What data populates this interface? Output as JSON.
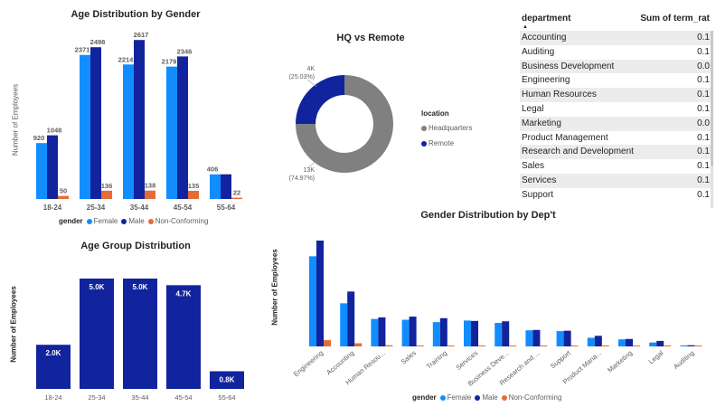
{
  "colors": {
    "female": "#118DFF",
    "male": "#12239E",
    "nonconforming": "#E66C37",
    "hq": "#808080",
    "remote": "#12239E",
    "bar": "#12239E"
  },
  "age_gender": {
    "title": "Age Distribution by Gender",
    "ylabel": "Number of Employees",
    "legend_title": "gender",
    "legend_items": [
      "Female",
      "Male",
      "Non-Conforming"
    ]
  },
  "hq_remote": {
    "title": "HQ vs Remote",
    "legend_title": "location",
    "legend_items": [
      "Headquarters",
      "Remote"
    ],
    "remote_label": "4K",
    "remote_pct": "(25.03%)",
    "hq_label": "13K",
    "hq_pct": "(74.97%)"
  },
  "table": {
    "col1": "department",
    "col2": "Sum of term_rat",
    "rows": [
      {
        "department": "Accounting",
        "value": "0.1"
      },
      {
        "department": "Auditing",
        "value": "0.1"
      },
      {
        "department": "Business Development",
        "value": "0.0"
      },
      {
        "department": "Engineering",
        "value": "0.1"
      },
      {
        "department": "Human Resources",
        "value": "0.1"
      },
      {
        "department": "Legal",
        "value": "0.1"
      },
      {
        "department": "Marketing",
        "value": "0.0"
      },
      {
        "department": "Product Management",
        "value": "0.1"
      },
      {
        "department": "Research and Development",
        "value": "0.1"
      },
      {
        "department": "Sales",
        "value": "0.1"
      },
      {
        "department": "Services",
        "value": "0.1"
      },
      {
        "department": "Support",
        "value": "0.1"
      }
    ]
  },
  "age_group": {
    "title": "Age Group Distribution",
    "ylabel": "Number of Employees"
  },
  "dept_gender": {
    "title": "Gender Distribution by Dep't",
    "ylabel": "Number of Employees",
    "legend_title": "gender",
    "legend_items": [
      "Female",
      "Male",
      "Non-Conforming"
    ]
  },
  "chart_data": [
    {
      "type": "bar",
      "title": "Age Distribution by Gender",
      "ylabel": "Number of Employees",
      "categories": [
        "18-24",
        "25-34",
        "35-44",
        "45-54",
        "55-64"
      ],
      "series": [
        {
          "name": "Female",
          "values": [
            920,
            2371,
            2214,
            2179,
            406
          ],
          "labels": [
            "920",
            "2371",
            "2214",
            "2179",
            "406"
          ]
        },
        {
          "name": "Male",
          "values": [
            1048,
            2498,
            2617,
            2346,
            406
          ],
          "labels": [
            "1048",
            "2498",
            "2617",
            "2346",
            ""
          ]
        },
        {
          "name": "Non-Conforming",
          "values": [
            50,
            136,
            138,
            135,
            22
          ],
          "labels": [
            "50",
            "136",
            "138",
            "135",
            "22"
          ]
        }
      ],
      "ylim": [
        0,
        2650
      ]
    },
    {
      "type": "pie",
      "title": "HQ vs Remote",
      "categories": [
        "Headquarters",
        "Remote"
      ],
      "values": [
        74.97,
        25.03
      ]
    },
    {
      "type": "bar",
      "title": "Age Group Distribution",
      "ylabel": "Number of Employees",
      "categories": [
        "18-24",
        "25-34",
        "35-44",
        "45-54",
        "55-64"
      ],
      "values": [
        2000,
        5000,
        5000,
        4700,
        800
      ],
      "labels": [
        "2.0K",
        "5.0K",
        "5.0K",
        "4.7K",
        "0.8K"
      ],
      "ylim": [
        0,
        5000
      ]
    },
    {
      "type": "bar",
      "title": "Gender Distribution by Dep't",
      "ylabel": "Number of Employees",
      "categories": [
        "Engineering",
        "Accounting",
        "Human Resou...",
        "Sales",
        "Training",
        "Services",
        "Business Deve...",
        "Research and ...",
        "Support",
        "Product Mana...",
        "Marketing",
        "Legal",
        "Auditing"
      ],
      "series": [
        {
          "name": "Female",
          "values": [
            2300,
            1100,
            700,
            680,
            620,
            660,
            600,
            410,
            390,
            220,
            180,
            100,
            25
          ]
        },
        {
          "name": "Male",
          "values": [
            2700,
            1400,
            740,
            760,
            720,
            650,
            640,
            420,
            400,
            270,
            190,
            140,
            30
          ]
        },
        {
          "name": "Non-Conforming",
          "values": [
            160,
            80,
            30,
            25,
            20,
            18,
            16,
            12,
            10,
            8,
            6,
            4,
            1
          ]
        }
      ],
      "ylim": [
        0,
        2700
      ]
    }
  ]
}
